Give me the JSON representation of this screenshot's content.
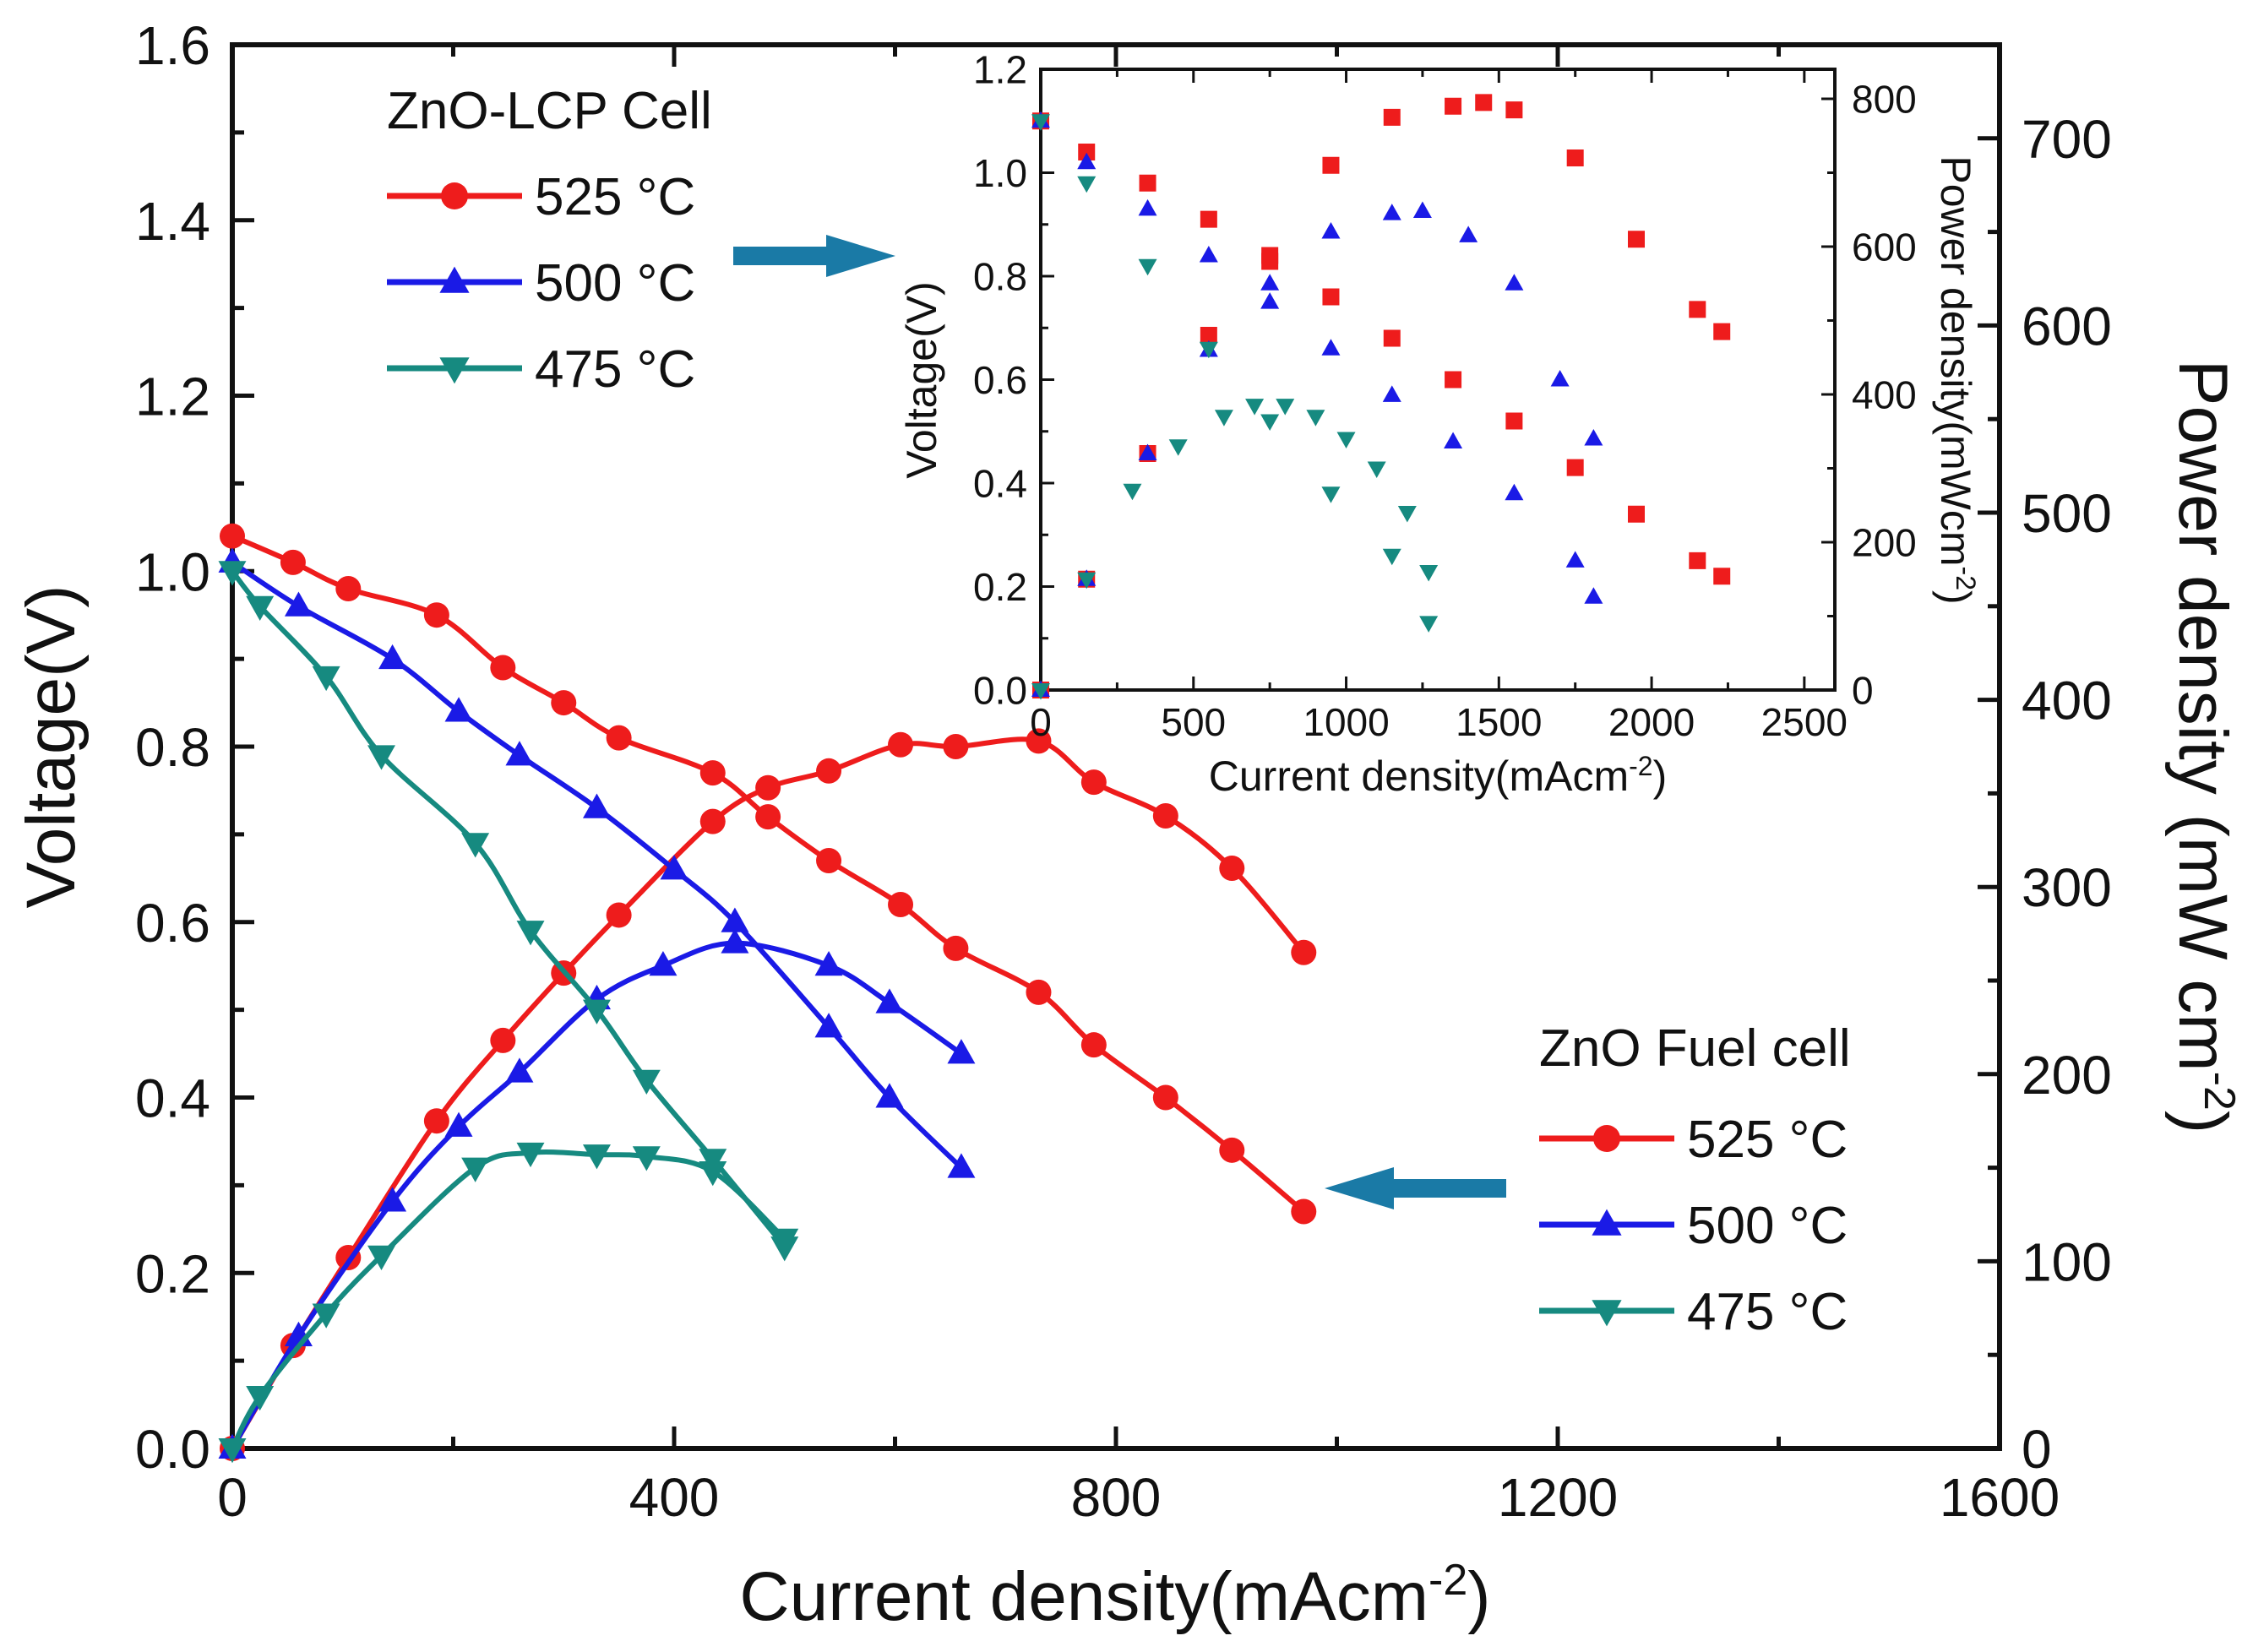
{
  "chart_data": [
    {
      "id": "main",
      "type": "line",
      "xlabel": "Current density(mAcm",
      "xlabel_sup": "-2",
      "xlabel_end": ")",
      "ylabel": "Voltage(V)",
      "y2label": "Power density (mW cm",
      "y2label_sup": "-2",
      "y2label_end": ")",
      "xlim": [
        0,
        1600
      ],
      "ylim": [
        0,
        1.6
      ],
      "y2lim": [
        0,
        750
      ],
      "xticks": [
        0,
        400,
        800,
        1200,
        1600
      ],
      "yticks": [
        0.0,
        0.2,
        0.4,
        0.6,
        0.8,
        1.0,
        1.2,
        1.4,
        1.6
      ],
      "y2ticks": [
        0,
        100,
        200,
        300,
        400,
        500,
        600,
        700
      ],
      "xtick_labels": [
        "0",
        "400",
        "800",
        "1200",
        "1600"
      ],
      "ytick_labels": [
        "0.0",
        "0.2",
        "0.4",
        "0.6",
        "0.8",
        "1.0",
        "1.2",
        "1.4",
        "1.6"
      ],
      "y2tick_labels": [
        "0",
        "100",
        "200",
        "300",
        "400",
        "500",
        "600",
        "700"
      ],
      "legend": {
        "title": "ZnO Fuel cell",
        "position": "center-right",
        "entries": [
          "525 °C",
          "500 °C",
          "475 °C"
        ]
      },
      "series": [
        {
          "name": "525 °C voltage",
          "axis": "left",
          "color": "#ee1c1c",
          "marker": "circle",
          "x": [
            0,
            55,
            105,
            185,
            245,
            300,
            350,
            435,
            485,
            540,
            605,
            655,
            730,
            780,
            845,
            905,
            970
          ],
          "y": [
            1.04,
            1.01,
            0.98,
            0.95,
            0.89,
            0.85,
            0.81,
            0.77,
            0.72,
            0.67,
            0.62,
            0.57,
            0.52,
            0.46,
            0.4,
            0.34,
            0.27
          ]
        },
        {
          "name": "525 °C power",
          "axis": "right",
          "color": "#ee1c1c",
          "marker": "circle",
          "x": [
            0,
            55,
            105,
            185,
            245,
            300,
            350,
            435,
            485,
            540,
            605,
            655,
            730,
            780,
            845,
            905,
            970
          ],
          "y": [
            0,
            55,
            102,
            175,
            218,
            254,
            285,
            335,
            353,
            362,
            376,
            375,
            378,
            356,
            338,
            310,
            265
          ]
        },
        {
          "name": "500 °C voltage",
          "axis": "left",
          "color": "#1a1ae6",
          "marker": "triangle-up",
          "x": [
            0,
            60,
            145,
            205,
            260,
            330,
            400,
            455,
            540,
            595,
            660
          ],
          "y": [
            1.01,
            0.96,
            0.9,
            0.84,
            0.79,
            0.73,
            0.66,
            0.6,
            0.48,
            0.4,
            0.32
          ]
        },
        {
          "name": "500 °C power",
          "axis": "right",
          "color": "#1a1ae6",
          "marker": "triangle-up",
          "x": [
            0,
            60,
            145,
            205,
            260,
            330,
            390,
            455,
            540,
            595,
            660
          ],
          "y": [
            0,
            60,
            132,
            172,
            201,
            240,
            258,
            270,
            258,
            238,
            211
          ]
        },
        {
          "name": "475 °C voltage",
          "axis": "left",
          "color": "#168a80",
          "marker": "triangle-down",
          "x": [
            0,
            25,
            85,
            135,
            220,
            270,
            330,
            375,
            435,
            500
          ],
          "y": [
            1.0,
            0.96,
            0.88,
            0.79,
            0.69,
            0.59,
            0.5,
            0.42,
            0.33,
            0.23
          ]
        },
        {
          "name": "475 °C power",
          "axis": "right",
          "color": "#168a80",
          "marker": "triangle-down",
          "x": [
            0,
            25,
            85,
            135,
            220,
            270,
            330,
            375,
            435,
            500
          ],
          "y": [
            0,
            28,
            72,
            103,
            150,
            158,
            157,
            156,
            148,
            112
          ]
        }
      ],
      "annotation": "arrow pointing from ZnO Fuel cell legend to the 525 °C curve end"
    },
    {
      "id": "inset",
      "type": "scatter",
      "xlabel": "Current density(mAcm",
      "xlabel_sup": "-2",
      "xlabel_end": ")",
      "ylabel": "Voltage(V)",
      "y2label": "Power density(mWcm",
      "y2label_sup": "-2",
      "y2label_end": ")",
      "xlim": [
        0,
        2600
      ],
      "ylim": [
        0,
        1.2
      ],
      "y2lim": [
        0,
        840
      ],
      "xticks": [
        0,
        500,
        1000,
        1500,
        2000,
        2500
      ],
      "yticks": [
        0.0,
        0.2,
        0.4,
        0.6,
        0.8,
        1.0,
        1.2
      ],
      "y2ticks": [
        0,
        200,
        400,
        600,
        800
      ],
      "xtick_labels": [
        "0",
        "500",
        "1000",
        "1500",
        "2000",
        "2500"
      ],
      "ytick_labels": [
        "0.0",
        "0.2",
        "0.4",
        "0.6",
        "0.8",
        "1.0",
        "1.2"
      ],
      "y2tick_labels": [
        "0",
        "200",
        "400",
        "600",
        "800"
      ],
      "legend": {
        "title": "ZnO-LCP Cell",
        "position": "top-left",
        "entries": [
          "525 °C",
          "500 °C",
          "475 °C"
        ]
      },
      "series": [
        {
          "name": "525 °C voltage",
          "axis": "left",
          "color": "#ee1c1c",
          "marker": "square",
          "x": [
            0,
            150,
            350,
            550,
            750,
            950,
            1150,
            1350,
            1550,
            1750,
            1950,
            2150,
            2230
          ],
          "y": [
            1.1,
            1.04,
            0.98,
            0.91,
            0.84,
            0.76,
            0.68,
            0.6,
            0.52,
            0.43,
            0.34,
            0.25,
            0.22
          ]
        },
        {
          "name": "525 °C power",
          "axis": "right",
          "color": "#ee1c1c",
          "marker": "square",
          "x": [
            0,
            150,
            350,
            550,
            750,
            950,
            1150,
            1350,
            1450,
            1550,
            1750,
            1950,
            2150,
            2230
          ],
          "y": [
            0,
            150,
            320,
            480,
            580,
            710,
            775,
            790,
            795,
            785,
            720,
            610,
            515,
            485
          ]
        },
        {
          "name": "500 °C voltage",
          "axis": "left",
          "color": "#1a1ae6",
          "marker": "triangle-up",
          "x": [
            0,
            150,
            350,
            550,
            750,
            950,
            1150,
            1350,
            1550,
            1750,
            1810
          ],
          "y": [
            1.1,
            1.02,
            0.93,
            0.84,
            0.75,
            0.66,
            0.57,
            0.48,
            0.38,
            0.25,
            0.18
          ]
        },
        {
          "name": "500 °C power",
          "axis": "right",
          "color": "#1a1ae6",
          "marker": "triangle-up",
          "x": [
            0,
            150,
            350,
            550,
            750,
            950,
            1150,
            1250,
            1400,
            1550,
            1700,
            1810
          ],
          "y": [
            0,
            150,
            320,
            460,
            550,
            620,
            645,
            648,
            615,
            550,
            420,
            340
          ]
        },
        {
          "name": "475 °C voltage",
          "axis": "left",
          "color": "#168a80",
          "marker": "triangle-down",
          "x": [
            0,
            150,
            350,
            550,
            750,
            950,
            1150,
            1270
          ],
          "y": [
            1.1,
            0.98,
            0.82,
            0.66,
            0.52,
            0.38,
            0.26,
            0.13
          ]
        },
        {
          "name": "475 °C power",
          "axis": "right",
          "color": "#168a80",
          "marker": "triangle-down",
          "x": [
            0,
            150,
            300,
            450,
            600,
            700,
            800,
            900,
            1000,
            1100,
            1200,
            1270
          ],
          "y": [
            0,
            150,
            270,
            330,
            370,
            385,
            385,
            370,
            340,
            300,
            240,
            160
          ]
        }
      ]
    }
  ],
  "legend_main_entries": [
    "525 °C",
    "500 °C",
    "475 °C"
  ],
  "legend_inset_entries": [
    "525 °C",
    "500 °C",
    "475 °C"
  ],
  "legend_main_title": "ZnO Fuel cell",
  "legend_inset_title": "ZnO-LCP Cell",
  "arrow_color": "#1a7aa6"
}
